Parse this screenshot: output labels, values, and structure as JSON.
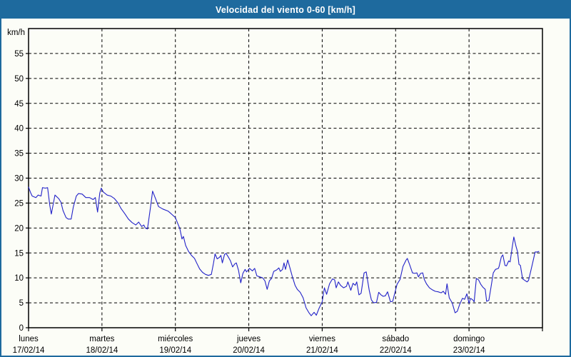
{
  "window": {
    "title": "Velocidad del viento 0-60 [km/h]",
    "title_bar_color": "#1e6a9e",
    "border_color": "#1e6a9e",
    "background_color": "#fcfdf7"
  },
  "chart_data": {
    "type": "line",
    "title": "Velocidad del viento 0-60 [km/h]",
    "ylabel": "km/h",
    "xlabel": "",
    "ylim": [
      0,
      60
    ],
    "ytick_step": 5,
    "ytick_labels": [
      "0",
      "5",
      "10",
      "15",
      "20",
      "25",
      "30",
      "35",
      "40",
      "45",
      "50",
      "55"
    ],
    "grid": "dashed",
    "grid_color": "#000000",
    "axis_color": "#000000",
    "text_color": "#000000",
    "legend": "none",
    "x_axis": {
      "unit": "days",
      "span_days": 7,
      "categories": [
        {
          "day": "lunes",
          "date": "17/02/14"
        },
        {
          "day": "martes",
          "date": "18/02/14"
        },
        {
          "day": "miércoles",
          "date": "19/02/14"
        },
        {
          "day": "jueves",
          "date": "20/02/14"
        },
        {
          "day": "viernes",
          "date": "21/02/14"
        },
        {
          "day": "sábado",
          "date": "22/02/14"
        },
        {
          "day": "domingo",
          "date": "23/02/14"
        }
      ]
    },
    "series": [
      {
        "name": "Velocidad del viento",
        "color": "#2222c8",
        "points": [
          [
            0.0,
            28.2
          ],
          [
            0.03,
            27.0
          ],
          [
            0.05,
            26.4
          ],
          [
            0.1,
            26.1
          ],
          [
            0.13,
            26.6
          ],
          [
            0.17,
            26.4
          ],
          [
            0.19,
            28.1
          ],
          [
            0.23,
            28.0
          ],
          [
            0.26,
            28.1
          ],
          [
            0.29,
            24.5
          ],
          [
            0.31,
            22.8
          ],
          [
            0.36,
            26.6
          ],
          [
            0.41,
            25.9
          ],
          [
            0.44,
            25.2
          ],
          [
            0.47,
            23.5
          ],
          [
            0.51,
            22.1
          ],
          [
            0.54,
            21.8
          ],
          [
            0.58,
            21.8
          ],
          [
            0.61,
            24.2
          ],
          [
            0.65,
            26.4
          ],
          [
            0.68,
            26.9
          ],
          [
            0.73,
            26.8
          ],
          [
            0.78,
            26.1
          ],
          [
            0.83,
            26.1
          ],
          [
            0.88,
            25.7
          ],
          [
            0.91,
            26.1
          ],
          [
            0.94,
            23.2
          ],
          [
            0.97,
            27.0
          ],
          [
            0.99,
            28.0
          ],
          [
            1.02,
            27.2
          ],
          [
            1.07,
            26.6
          ],
          [
            1.12,
            26.4
          ],
          [
            1.17,
            25.9
          ],
          [
            1.22,
            25.0
          ],
          [
            1.26,
            23.9
          ],
          [
            1.31,
            22.9
          ],
          [
            1.36,
            21.8
          ],
          [
            1.41,
            21.1
          ],
          [
            1.46,
            20.6
          ],
          [
            1.5,
            21.2
          ],
          [
            1.54,
            20.3
          ],
          [
            1.57,
            20.6
          ],
          [
            1.59,
            20.0
          ],
          [
            1.62,
            19.8
          ],
          [
            1.66,
            24.0
          ],
          [
            1.69,
            27.4
          ],
          [
            1.73,
            25.9
          ],
          [
            1.77,
            24.3
          ],
          [
            1.83,
            23.8
          ],
          [
            1.9,
            23.4
          ],
          [
            1.94,
            22.9
          ],
          [
            2.0,
            22.1
          ],
          [
            2.03,
            21.0
          ],
          [
            2.06,
            19.9
          ],
          [
            2.09,
            17.8
          ],
          [
            2.11,
            18.3
          ],
          [
            2.14,
            16.5
          ],
          [
            2.18,
            15.3
          ],
          [
            2.22,
            14.5
          ],
          [
            2.26,
            13.9
          ],
          [
            2.29,
            13.0
          ],
          [
            2.33,
            11.8
          ],
          [
            2.37,
            11.1
          ],
          [
            2.41,
            10.7
          ],
          [
            2.45,
            10.5
          ],
          [
            2.49,
            10.7
          ],
          [
            2.52,
            13.0
          ],
          [
            2.54,
            14.8
          ],
          [
            2.57,
            13.8
          ],
          [
            2.6,
            14.1
          ],
          [
            2.62,
            14.5
          ],
          [
            2.64,
            13.0
          ],
          [
            2.67,
            14.7
          ],
          [
            2.69,
            14.9
          ],
          [
            2.72,
            14.2
          ],
          [
            2.75,
            13.4
          ],
          [
            2.78,
            12.2
          ],
          [
            2.81,
            12.8
          ],
          [
            2.83,
            13.0
          ],
          [
            2.86,
            11.5
          ],
          [
            2.89,
            9.0
          ],
          [
            2.92,
            10.9
          ],
          [
            2.95,
            11.7
          ],
          [
            2.97,
            11.2
          ],
          [
            3.01,
            11.9
          ],
          [
            3.05,
            11.4
          ],
          [
            3.08,
            11.9
          ],
          [
            3.11,
            10.4
          ],
          [
            3.15,
            10.2
          ],
          [
            3.19,
            10.0
          ],
          [
            3.22,
            9.4
          ],
          [
            3.25,
            7.7
          ],
          [
            3.28,
            9.4
          ],
          [
            3.31,
            9.9
          ],
          [
            3.34,
            11.3
          ],
          [
            3.38,
            11.6
          ],
          [
            3.41,
            12.0
          ],
          [
            3.43,
            11.3
          ],
          [
            3.46,
            11.7
          ],
          [
            3.48,
            13.0
          ],
          [
            3.5,
            11.7
          ],
          [
            3.53,
            13.6
          ],
          [
            3.56,
            12.0
          ],
          [
            3.59,
            10.4
          ],
          [
            3.63,
            8.5
          ],
          [
            3.66,
            7.7
          ],
          [
            3.7,
            7.1
          ],
          [
            3.74,
            6.0
          ],
          [
            3.78,
            4.0
          ],
          [
            3.82,
            3.0
          ],
          [
            3.85,
            2.4
          ],
          [
            3.89,
            3.1
          ],
          [
            3.92,
            2.5
          ],
          [
            3.96,
            4.0
          ],
          [
            4.0,
            5.2
          ],
          [
            4.03,
            8.0
          ],
          [
            4.06,
            6.7
          ],
          [
            4.1,
            8.8
          ],
          [
            4.14,
            9.8
          ],
          [
            4.17,
            9.6
          ],
          [
            4.19,
            8.0
          ],
          [
            4.22,
            9.2
          ],
          [
            4.25,
            8.5
          ],
          [
            4.29,
            8.0
          ],
          [
            4.33,
            8.3
          ],
          [
            4.35,
            9.2
          ],
          [
            4.39,
            7.5
          ],
          [
            4.42,
            8.9
          ],
          [
            4.45,
            8.5
          ],
          [
            4.47,
            9.2
          ],
          [
            4.5,
            6.6
          ],
          [
            4.53,
            6.9
          ],
          [
            4.57,
            11.0
          ],
          [
            4.6,
            11.2
          ],
          [
            4.64,
            7.5
          ],
          [
            4.67,
            5.6
          ],
          [
            4.7,
            5.0
          ],
          [
            4.74,
            5.1
          ],
          [
            4.77,
            7.1
          ],
          [
            4.8,
            6.6
          ],
          [
            4.83,
            6.3
          ],
          [
            4.86,
            6.4
          ],
          [
            4.89,
            7.2
          ],
          [
            4.93,
            5.2
          ],
          [
            4.96,
            5.3
          ],
          [
            5.0,
            7.6
          ],
          [
            5.02,
            8.7
          ],
          [
            5.06,
            9.7
          ],
          [
            5.1,
            12.3
          ],
          [
            5.14,
            13.5
          ],
          [
            5.16,
            13.9
          ],
          [
            5.19,
            12.7
          ],
          [
            5.23,
            11.0
          ],
          [
            5.26,
            10.9
          ],
          [
            5.29,
            11.0
          ],
          [
            5.31,
            10.2
          ],
          [
            5.34,
            10.9
          ],
          [
            5.37,
            11.0
          ],
          [
            5.39,
            9.7
          ],
          [
            5.42,
            8.8
          ],
          [
            5.46,
            8.0
          ],
          [
            5.5,
            7.6
          ],
          [
            5.54,
            7.3
          ],
          [
            5.58,
            7.2
          ],
          [
            5.62,
            7.0
          ],
          [
            5.65,
            7.3
          ],
          [
            5.68,
            6.7
          ],
          [
            5.7,
            8.8
          ],
          [
            5.73,
            6.0
          ],
          [
            5.77,
            5.0
          ],
          [
            5.81,
            3.0
          ],
          [
            5.84,
            3.3
          ],
          [
            5.87,
            4.6
          ],
          [
            5.91,
            5.9
          ],
          [
            5.94,
            5.7
          ],
          [
            5.97,
            6.8
          ],
          [
            6.0,
            4.9
          ],
          [
            6.02,
            5.9
          ],
          [
            6.05,
            5.6
          ],
          [
            6.07,
            5.2
          ],
          [
            6.1,
            9.9
          ],
          [
            6.13,
            9.6
          ],
          [
            6.16,
            8.7
          ],
          [
            6.19,
            8.1
          ],
          [
            6.22,
            7.7
          ],
          [
            6.24,
            5.3
          ],
          [
            6.27,
            5.5
          ],
          [
            6.3,
            8.2
          ],
          [
            6.33,
            11.0
          ],
          [
            6.36,
            11.7
          ],
          [
            6.4,
            11.9
          ],
          [
            6.41,
            12.3
          ],
          [
            6.44,
            14.2
          ],
          [
            6.46,
            14.6
          ],
          [
            6.49,
            12.5
          ],
          [
            6.51,
            12.4
          ],
          [
            6.54,
            13.4
          ],
          [
            6.56,
            13.2
          ],
          [
            6.59,
            16.3
          ],
          [
            6.61,
            18.2
          ],
          [
            6.64,
            16.3
          ],
          [
            6.66,
            15.3
          ],
          [
            6.68,
            12.7
          ],
          [
            6.7,
            12.5
          ],
          [
            6.73,
            9.8
          ],
          [
            6.76,
            9.5
          ],
          [
            6.79,
            9.2
          ],
          [
            6.81,
            9.5
          ],
          [
            6.84,
            11.3
          ],
          [
            6.87,
            13.2
          ],
          [
            6.9,
            15.2
          ],
          [
            6.93,
            15.2
          ],
          [
            6.95,
            15.3
          ]
        ]
      }
    ]
  }
}
